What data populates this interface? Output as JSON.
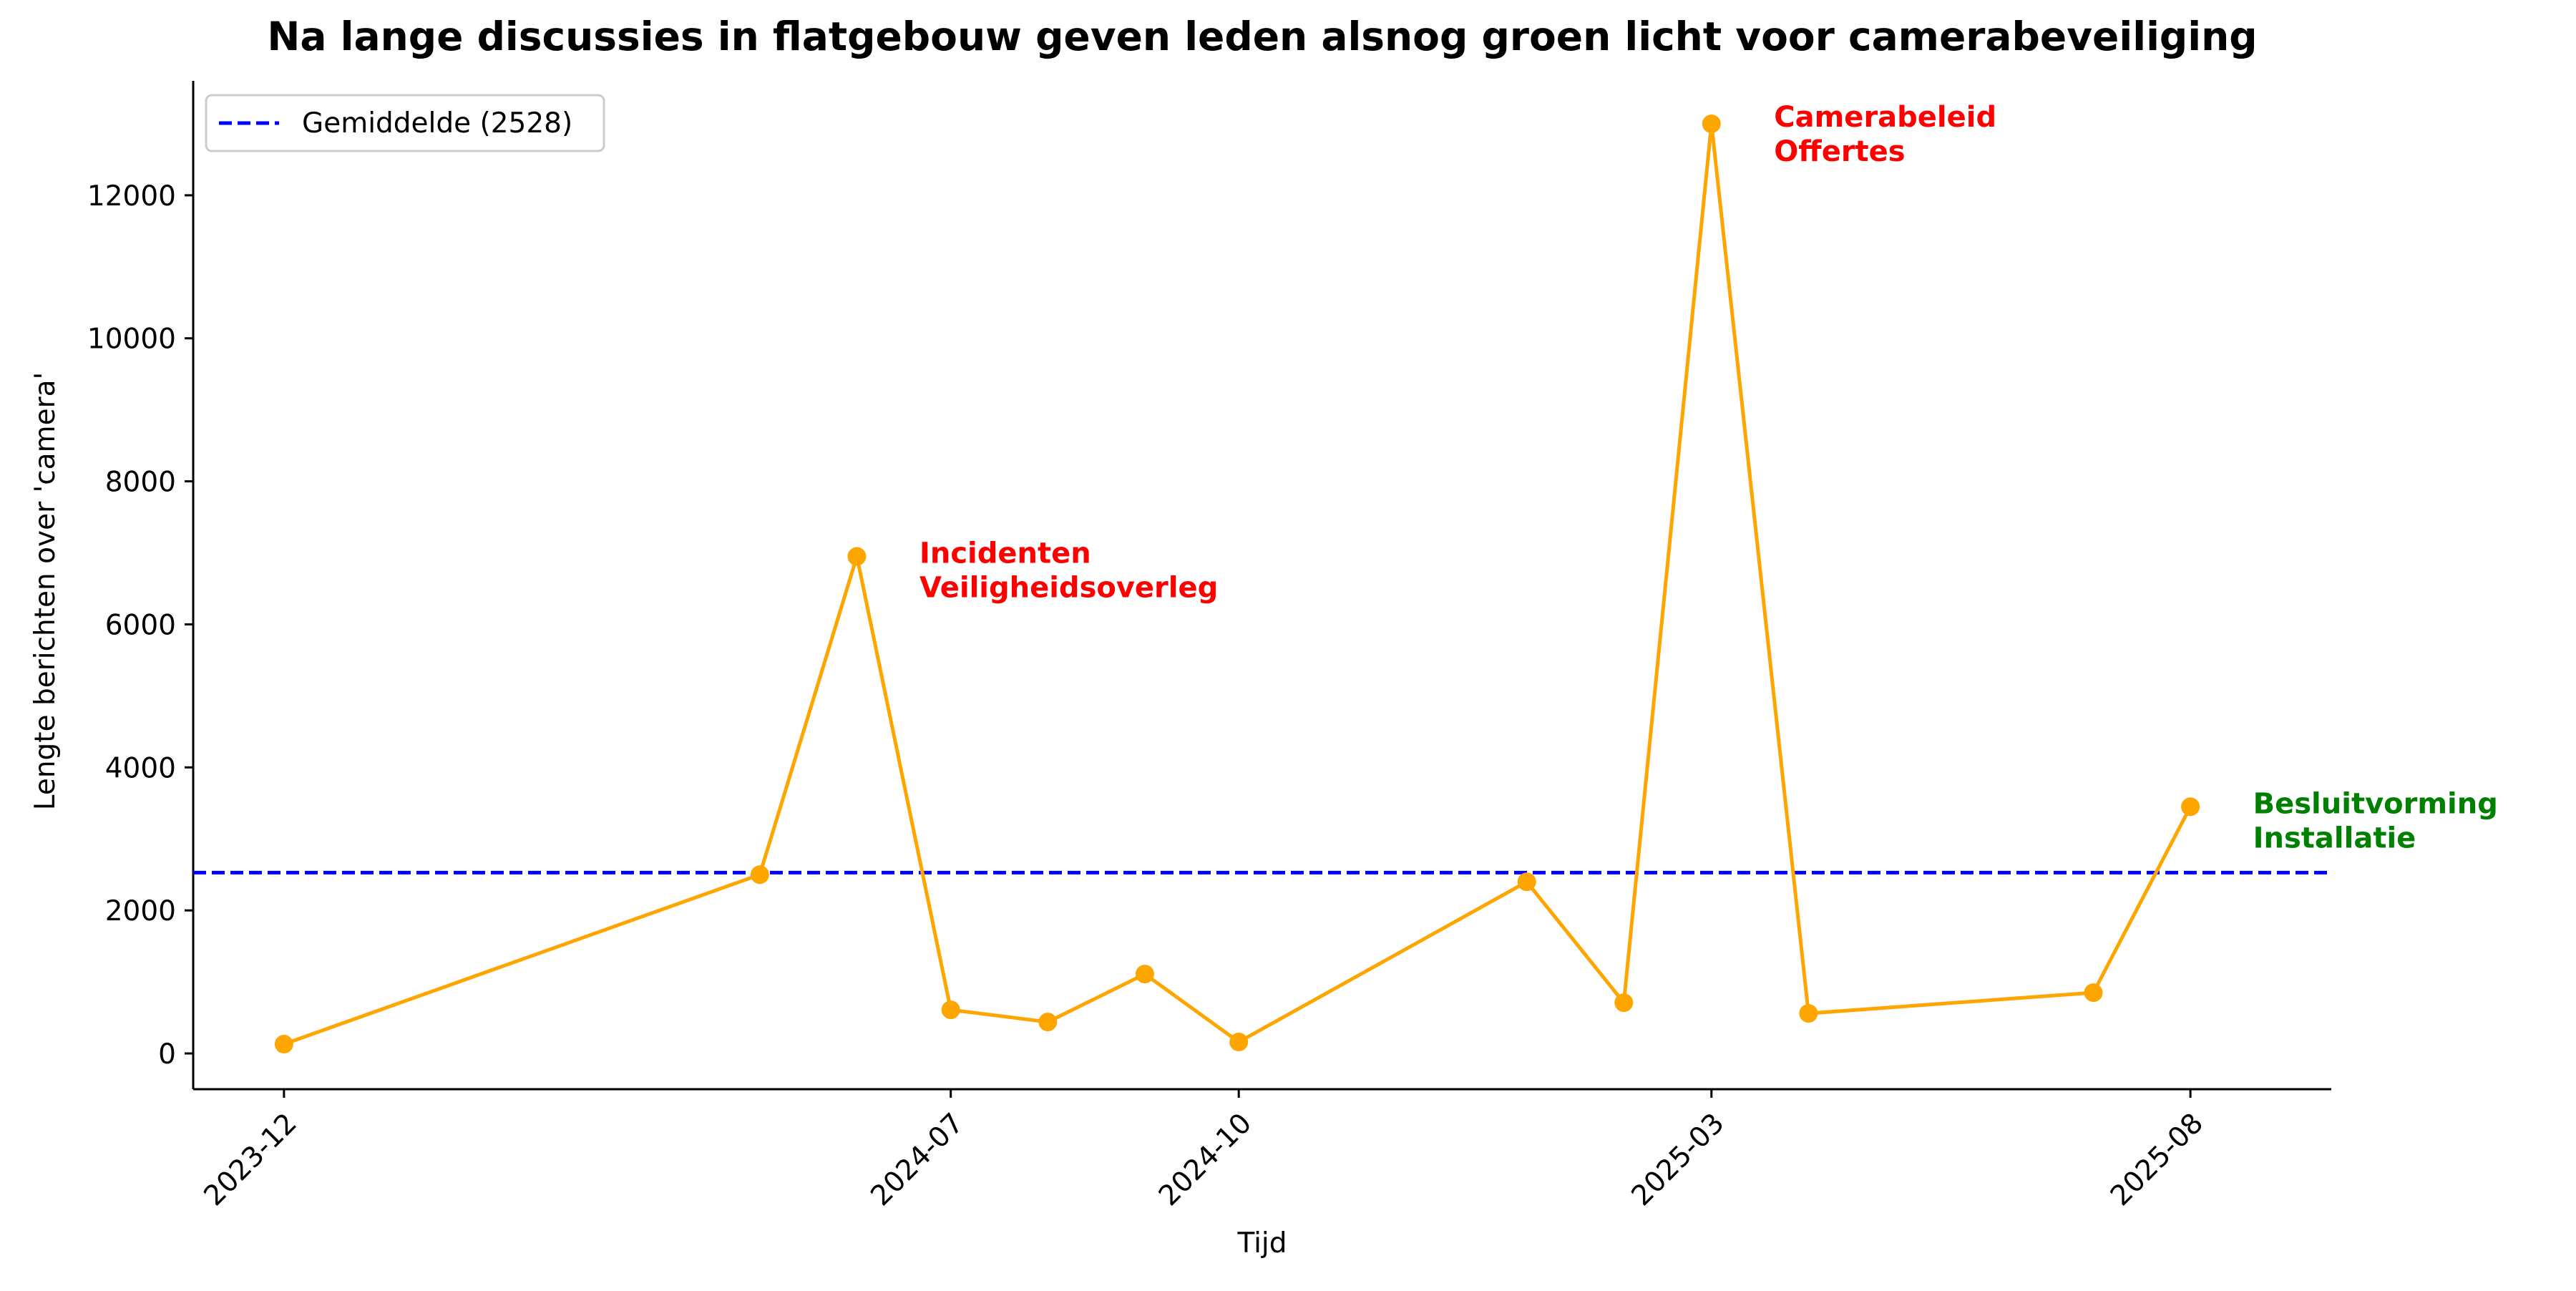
{
  "chart_data": {
    "type": "line",
    "title": "Na lange discussies in flatgebouw geven leden alsnog groen licht voor camerabeveiliging",
    "xlabel": "Tijd",
    "ylabel": "Lengte berichten over 'camera'",
    "x_tick_labels": [
      "2023-12",
      "2024-07",
      "2024-10",
      "2025-03",
      "2025-08"
    ],
    "y_ticks": [
      0,
      2000,
      4000,
      6000,
      8000,
      10000,
      12000
    ],
    "ylim": [
      -500,
      13600
    ],
    "xlim": [
      "2023-11-02",
      "2025-09-15"
    ],
    "grid": false,
    "legend_position": "top-left",
    "series": [
      {
        "name": "",
        "color": "#FFA500",
        "points": [
          {
            "x": "2023-12-01",
            "y": 130
          },
          {
            "x": "2024-05-01",
            "y": 2500
          },
          {
            "x": "2024-06-01",
            "y": 6950
          },
          {
            "x": "2024-07-01",
            "y": 610
          },
          {
            "x": "2024-08-01",
            "y": 440
          },
          {
            "x": "2024-09-01",
            "y": 1110
          },
          {
            "x": "2024-10-01",
            "y": 160
          },
          {
            "x": "2025-01-01",
            "y": 2400
          },
          {
            "x": "2025-02-01",
            "y": 710
          },
          {
            "x": "2025-03-01",
            "y": 13000
          },
          {
            "x": "2025-04-01",
            "y": 560
          },
          {
            "x": "2025-07-01",
            "y": 850
          },
          {
            "x": "2025-08-01",
            "y": 3450
          }
        ]
      }
    ],
    "reference_line": {
      "label": "Gemiddelde (2528)",
      "y": 2528,
      "color": "#0000FF",
      "style": "dashed"
    },
    "annotations": [
      {
        "lines": [
          "Incidenten",
          "Veiligheidsoverleg"
        ],
        "x": "2024-06-21",
        "y": 7000,
        "color": "#FF0000"
      },
      {
        "lines": [
          "Camerabeleid",
          "Offertes"
        ],
        "x": "2025-03-21",
        "y": 13100,
        "color": "#FF0000"
      },
      {
        "lines": [
          "Besluitvorming",
          "Installatie"
        ],
        "x": "2025-08-21",
        "y": 3500,
        "color": "#008000"
      }
    ]
  }
}
